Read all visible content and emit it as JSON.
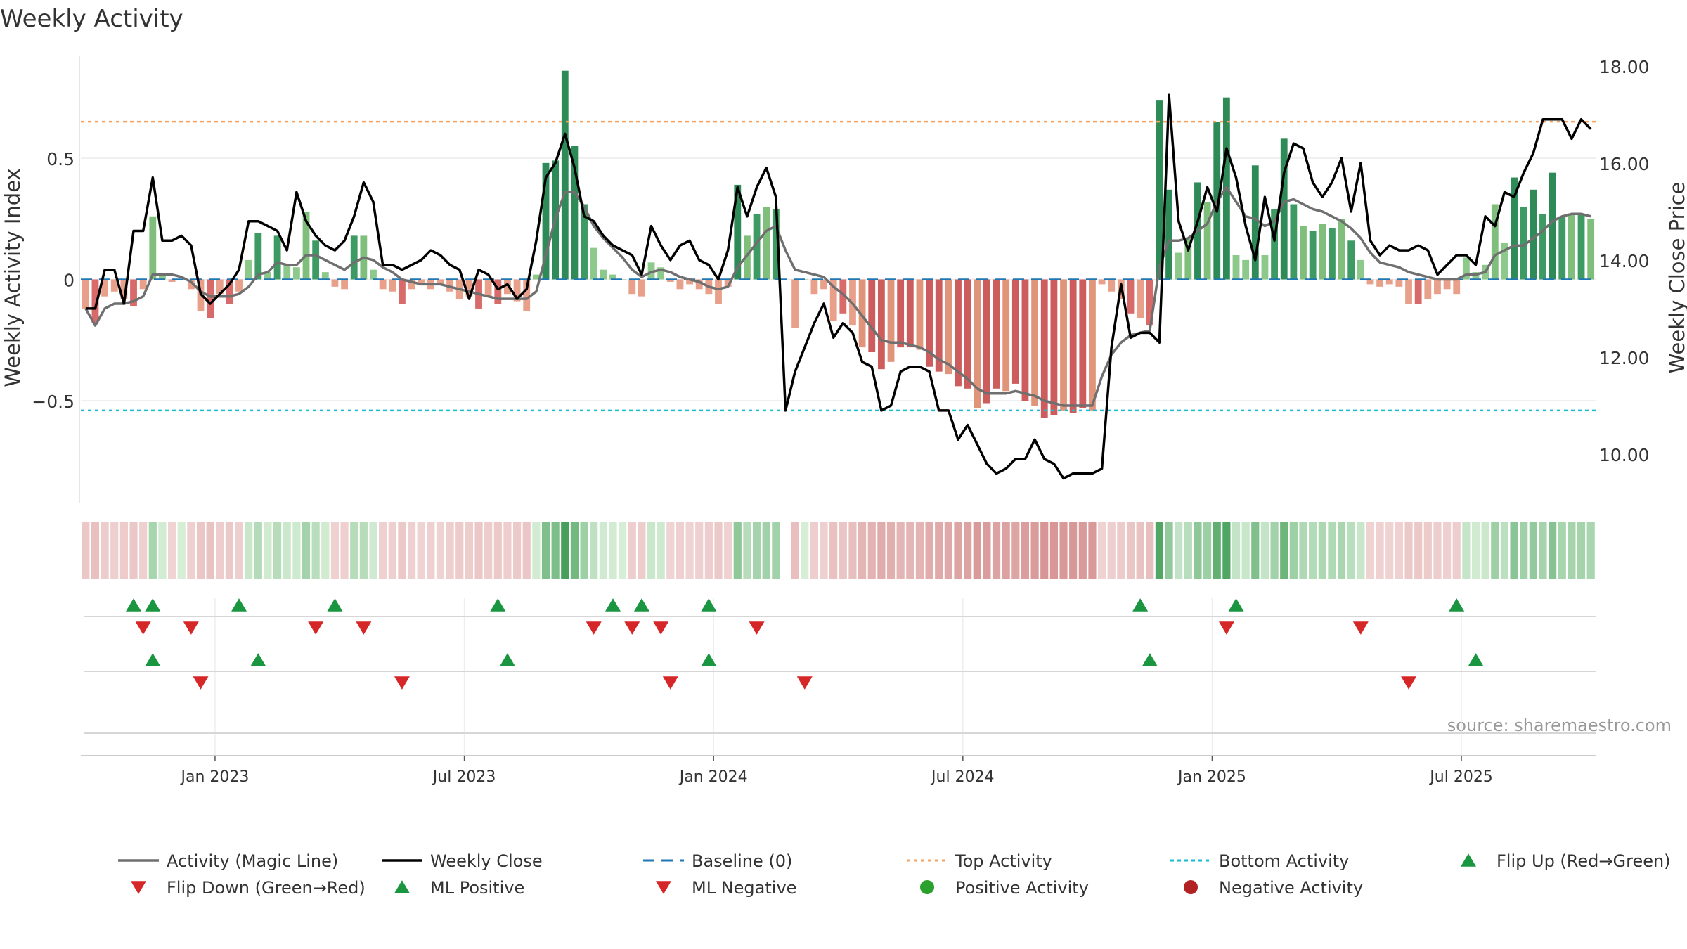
{
  "chart_data": {
    "type": "bar",
    "title": "Weekly Activity",
    "ylabel_left": "Weekly Activity Index",
    "ylabel_right": "Weekly Close Price",
    "source": "source: sharemaestro.com",
    "ylim_left": [
      -0.92,
      0.92
    ],
    "ylim_right": [
      9.0,
      18.2
    ],
    "left_ticks": [
      {
        "v": 0.5,
        "label": "0.5"
      },
      {
        "v": 0,
        "label": "0"
      },
      {
        "v": -0.5,
        "label": "−0.5"
      }
    ],
    "right_ticks": [
      {
        "v": 18,
        "label": "18.00"
      },
      {
        "v": 16,
        "label": "16.00"
      },
      {
        "v": 14,
        "label": "14.00"
      },
      {
        "v": 12,
        "label": "12.00"
      },
      {
        "v": 10,
        "label": "10.00"
      }
    ],
    "x_ticks": [
      {
        "i": 14,
        "label": "Jan 2023"
      },
      {
        "i": 40,
        "label": "Jul 2023"
      },
      {
        "i": 66,
        "label": "Jan 2024"
      },
      {
        "i": 92,
        "label": "Jul 2024"
      },
      {
        "i": 118,
        "label": "Jan 2025"
      },
      {
        "i": 144,
        "label": "Jul 2025"
      }
    ],
    "reference_lines": {
      "baseline": 0,
      "top_activity": 0.65,
      "bottom_activity": -0.54
    },
    "activity": [
      -0.12,
      -0.18,
      -0.07,
      -0.05,
      -0.08,
      -0.11,
      -0.04,
      0.26,
      0.02,
      -0.01,
      0.0,
      -0.04,
      -0.13,
      -0.16,
      -0.06,
      -0.1,
      -0.05,
      0.08,
      0.19,
      0.03,
      0.18,
      0.06,
      0.05,
      0.28,
      0.16,
      0.03,
      -0.03,
      -0.04,
      0.18,
      0.18,
      0.04,
      -0.04,
      -0.05,
      -0.1,
      -0.04,
      -0.02,
      -0.04,
      -0.02,
      -0.05,
      -0.08,
      -0.07,
      -0.12,
      -0.07,
      -0.1,
      -0.06,
      -0.09,
      -0.13,
      0.02,
      0.48,
      0.49,
      0.86,
      0.55,
      0.31,
      0.13,
      0.04,
      0.02,
      0.0,
      -0.06,
      -0.07,
      0.07,
      0.05,
      -0.01,
      -0.04,
      -0.02,
      -0.04,
      -0.06,
      -0.1,
      -0.03,
      0.39,
      0.18,
      0.27,
      0.3,
      0.29,
      -0.22,
      -0.2,
      0.0,
      -0.06,
      -0.04,
      -0.17,
      -0.14,
      -0.19,
      -0.28,
      -0.3,
      -0.37,
      -0.34,
      -0.28,
      -0.28,
      -0.29,
      -0.36,
      -0.38,
      -0.39,
      -0.44,
      -0.45,
      -0.53,
      -0.51,
      -0.45,
      -0.46,
      -0.43,
      -0.5,
      -0.52,
      -0.57,
      -0.56,
      -0.54,
      -0.55,
      -0.53,
      -0.54,
      -0.02,
      -0.05,
      -0.08,
      -0.14,
      -0.16,
      -0.19,
      0.74,
      0.37,
      0.11,
      0.17,
      0.4,
      0.32,
      0.65,
      0.75,
      0.1,
      0.08,
      0.47,
      0.1,
      0.29,
      0.58,
      0.31,
      0.22,
      0.2,
      0.23,
      0.21,
      0.25,
      0.16,
      0.08,
      -0.02,
      -0.03,
      -0.02,
      -0.03,
      -0.1,
      -0.1,
      -0.08,
      -0.06,
      -0.04,
      -0.06,
      0.09,
      0.03,
      0.06,
      0.31,
      0.15,
      0.42,
      0.3,
      0.37,
      0.27,
      0.44,
      0.26,
      0.27,
      0.27,
      0.25
    ],
    "magic_line": [
      -0.12,
      -0.19,
      -0.12,
      -0.1,
      -0.1,
      -0.09,
      -0.07,
      0.02,
      0.02,
      0.02,
      0.01,
      -0.01,
      -0.05,
      -0.07,
      -0.07,
      -0.07,
      -0.06,
      -0.03,
      0.02,
      0.03,
      0.07,
      0.06,
      0.06,
      0.1,
      0.1,
      0.08,
      0.06,
      0.04,
      0.07,
      0.09,
      0.08,
      0.05,
      0.03,
      0.0,
      -0.01,
      -0.02,
      -0.02,
      -0.02,
      -0.03,
      -0.04,
      -0.05,
      -0.06,
      -0.07,
      -0.08,
      -0.08,
      -0.08,
      -0.08,
      -0.05,
      0.1,
      0.25,
      0.36,
      0.36,
      0.3,
      0.22,
      0.17,
      0.13,
      0.09,
      0.04,
      0.01,
      0.03,
      0.04,
      0.03,
      0.01,
      0.0,
      -0.01,
      -0.03,
      -0.04,
      -0.03,
      0.05,
      0.1,
      0.15,
      0.2,
      0.22,
      0.12,
      0.04,
      0.03,
      0.02,
      0.01,
      -0.03,
      -0.06,
      -0.1,
      -0.15,
      -0.2,
      -0.25,
      -0.26,
      -0.26,
      -0.27,
      -0.28,
      -0.3,
      -0.33,
      -0.35,
      -0.38,
      -0.41,
      -0.45,
      -0.47,
      -0.47,
      -0.47,
      -0.46,
      -0.47,
      -0.48,
      -0.5,
      -0.51,
      -0.52,
      -0.52,
      -0.52,
      -0.52,
      -0.4,
      -0.31,
      -0.26,
      -0.23,
      -0.22,
      -0.21,
      0.05,
      0.16,
      0.16,
      0.17,
      0.2,
      0.23,
      0.32,
      0.38,
      0.32,
      0.26,
      0.25,
      0.22,
      0.24,
      0.32,
      0.33,
      0.31,
      0.29,
      0.28,
      0.26,
      0.24,
      0.21,
      0.17,
      0.11,
      0.07,
      0.06,
      0.05,
      0.03,
      0.02,
      0.01,
      0.0,
      0.0,
      0.0,
      0.02,
      0.02,
      0.03,
      0.1,
      0.12,
      0.14,
      0.14,
      0.17,
      0.2,
      0.24,
      0.26,
      0.27,
      0.27,
      0.26
    ],
    "weekly_close": [
      13.0,
      13.0,
      13.8,
      13.8,
      13.1,
      14.6,
      14.6,
      15.7,
      14.4,
      14.4,
      14.5,
      14.3,
      13.3,
      13.1,
      13.3,
      13.5,
      13.8,
      14.8,
      14.8,
      14.7,
      14.6,
      14.2,
      15.4,
      14.8,
      14.5,
      14.3,
      14.2,
      14.4,
      14.9,
      15.6,
      15.2,
      13.9,
      13.9,
      13.8,
      13.9,
      14.0,
      14.2,
      14.1,
      13.9,
      13.8,
      13.2,
      13.8,
      13.7,
      13.4,
      13.5,
      13.2,
      13.4,
      14.4,
      15.7,
      16.0,
      16.6,
      15.9,
      14.9,
      14.8,
      14.5,
      14.3,
      14.2,
      14.1,
      13.7,
      14.7,
      14.3,
      14.0,
      14.3,
      14.4,
      14.0,
      13.9,
      13.6,
      14.2,
      15.5,
      14.9,
      15.5,
      15.9,
      15.3,
      10.9,
      11.7,
      12.2,
      12.7,
      13.1,
      12.4,
      12.7,
      12.5,
      11.9,
      11.8,
      10.9,
      11.0,
      11.7,
      11.8,
      11.8,
      11.7,
      10.9,
      10.9,
      10.3,
      10.6,
      10.2,
      9.8,
      9.6,
      9.7,
      9.9,
      9.9,
      10.3,
      9.9,
      9.8,
      9.5,
      9.6,
      9.6,
      9.6,
      9.7,
      12.2,
      13.5,
      12.4,
      12.5,
      12.5,
      12.3,
      17.4,
      14.8,
      14.2,
      14.8,
      15.5,
      15.0,
      16.3,
      15.7,
      14.7,
      14.0,
      15.3,
      14.4,
      15.8,
      16.4,
      16.3,
      15.6,
      15.3,
      15.6,
      16.1,
      15.0,
      16.0,
      14.4,
      14.1,
      14.3,
      14.2,
      14.2,
      14.3,
      14.2,
      13.7,
      13.9,
      14.1,
      14.1,
      13.9,
      14.9,
      14.7,
      15.4,
      15.3,
      15.8,
      16.2,
      16.9,
      16.9,
      16.9,
      16.5,
      16.9,
      16.7
    ],
    "gap_index": 73,
    "signal_row1": [
      {
        "i": 5,
        "dir": "up"
      },
      {
        "i": 7,
        "dir": "up"
      },
      {
        "i": 6,
        "dir": "down"
      },
      {
        "i": 11,
        "dir": "down"
      },
      {
        "i": 16,
        "dir": "up"
      },
      {
        "i": 24,
        "dir": "down"
      },
      {
        "i": 26,
        "dir": "up"
      },
      {
        "i": 29,
        "dir": "down"
      },
      {
        "i": 43,
        "dir": "up"
      },
      {
        "i": 53,
        "dir": "down"
      },
      {
        "i": 55,
        "dir": "up"
      },
      {
        "i": 57,
        "dir": "down"
      },
      {
        "i": 58,
        "dir": "up"
      },
      {
        "i": 60,
        "dir": "down"
      },
      {
        "i": 65,
        "dir": "up"
      },
      {
        "i": 70,
        "dir": "down"
      },
      {
        "i": 110,
        "dir": "up"
      },
      {
        "i": 119,
        "dir": "down"
      },
      {
        "i": 120,
        "dir": "up"
      },
      {
        "i": 133,
        "dir": "down"
      },
      {
        "i": 143,
        "dir": "up"
      }
    ],
    "signal_row2": [
      {
        "i": 7,
        "dir": "up"
      },
      {
        "i": 12,
        "dir": "down"
      },
      {
        "i": 18,
        "dir": "up"
      },
      {
        "i": 33,
        "dir": "down"
      },
      {
        "i": 44,
        "dir": "up"
      },
      {
        "i": 61,
        "dir": "down"
      },
      {
        "i": 65,
        "dir": "up"
      },
      {
        "i": 75,
        "dir": "down"
      },
      {
        "i": 111,
        "dir": "up"
      },
      {
        "i": 138,
        "dir": "down"
      },
      {
        "i": 145,
        "dir": "up"
      }
    ],
    "legend": [
      {
        "label": "Activity (Magic Line)",
        "kind": "line",
        "color": "#6f6f6f"
      },
      {
        "label": "Weekly Close",
        "kind": "line",
        "color": "#000000"
      },
      {
        "label": "Baseline (0)",
        "kind": "dash",
        "color": "#1f77b4"
      },
      {
        "label": "Top Activity",
        "kind": "dot",
        "color": "#f4a261"
      },
      {
        "label": "Bottom Activity",
        "kind": "dot",
        "color": "#17becf"
      },
      {
        "label": "Flip Up (Red→Green)",
        "kind": "tri-up",
        "color": "#1a9641"
      },
      {
        "label": "Flip Down (Green→Red)",
        "kind": "tri-down",
        "color": "#d62728"
      },
      {
        "label": "ML Positive",
        "kind": "tri-up",
        "color": "#1a9641"
      },
      {
        "label": "ML Negative",
        "kind": "tri-down",
        "color": "#d62728"
      },
      {
        "label": "Positive Activity",
        "kind": "circle",
        "color": "#2ca02c"
      },
      {
        "label": "Negative Activity",
        "kind": "circle",
        "color": "#b22222"
      }
    ]
  }
}
